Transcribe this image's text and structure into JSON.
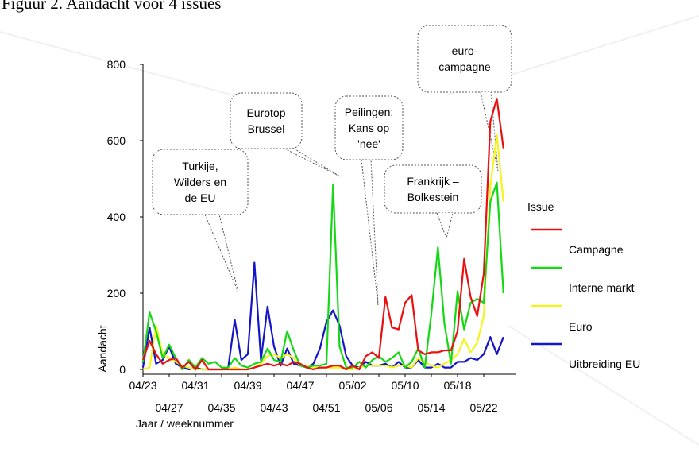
{
  "caption": "Figuur 2. Aandacht voor 4 issues",
  "chart_data": {
    "type": "line",
    "xlabel": "Jaar / weeknummer",
    "ylabel": "Aandacht",
    "ylim": [
      0,
      800
    ],
    "yticks": [
      0,
      200,
      400,
      600,
      800
    ],
    "tick_labels_upper": [
      "04/23",
      "04/31",
      "04/39",
      "04/47",
      "05/02",
      "05/10",
      "05/18"
    ],
    "tick_labels_lower": [
      "04/27",
      "04/35",
      "04/43",
      "04/51",
      "05/06",
      "05/14",
      "05/22"
    ],
    "legend_title": "Issue",
    "legend_position": "right",
    "series": [
      {
        "name": "Campagne",
        "color": "#e81010",
        "values": [
          25,
          75,
          40,
          15,
          25,
          30,
          5,
          20,
          0,
          25,
          0,
          0,
          0,
          0,
          0,
          0,
          0,
          5,
          10,
          15,
          10,
          15,
          10,
          20,
          15,
          5,
          0,
          5,
          5,
          10,
          10,
          0,
          10,
          0,
          35,
          45,
          30,
          190,
          110,
          105,
          175,
          195,
          50,
          40,
          45,
          45,
          50,
          50,
          100,
          290,
          190,
          140,
          250,
          650,
          710,
          580
        ]
      },
      {
        "name": "Interne markt",
        "color": "#14d814",
        "values": [
          20,
          150,
          100,
          30,
          65,
          30,
          0,
          25,
          5,
          30,
          15,
          20,
          5,
          5,
          30,
          10,
          5,
          15,
          20,
          55,
          25,
          20,
          100,
          50,
          10,
          5,
          10,
          10,
          15,
          485,
          60,
          5,
          5,
          20,
          5,
          25,
          35,
          20,
          30,
          45,
          5,
          20,
          55,
          5,
          145,
          320,
          120,
          15,
          205,
          105,
          175,
          185,
          175,
          440,
          490,
          200
        ]
      },
      {
        "name": "Euro",
        "color": "#f4f41e",
        "values": [
          0,
          5,
          115,
          40,
          30,
          20,
          10,
          5,
          0,
          0,
          0,
          0,
          0,
          0,
          5,
          0,
          0,
          5,
          15,
          35,
          40,
          30,
          40,
          30,
          10,
          10,
          5,
          5,
          5,
          5,
          5,
          0,
          0,
          5,
          10,
          10,
          10,
          10,
          5,
          10,
          10,
          5,
          30,
          20,
          10,
          5,
          15,
          25,
          40,
          80,
          45,
          70,
          140,
          480,
          615,
          440
        ]
      },
      {
        "name": "Uitbreiding EU",
        "color": "#1414c8",
        "values": [
          5,
          110,
          15,
          25,
          60,
          15,
          5,
          0,
          5,
          0,
          0,
          0,
          0,
          5,
          130,
          25,
          40,
          280,
          25,
          165,
          60,
          10,
          55,
          15,
          10,
          5,
          15,
          55,
          125,
          155,
          115,
          35,
          10,
          5,
          20,
          10,
          10,
          15,
          5,
          20,
          5,
          5,
          25,
          5,
          5,
          15,
          5,
          5,
          20,
          20,
          30,
          25,
          40,
          85,
          40,
          85
        ]
      }
    ],
    "annotations": [
      {
        "text": [
          "Turkije,",
          "Wilders en",
          "de EU"
        ]
      },
      {
        "text": [
          "Eurotop",
          "Brussel"
        ]
      },
      {
        "text": [
          "Peilingen:",
          "Kans op",
          "'nee'"
        ]
      },
      {
        "text": [
          "Frankrijk –",
          "Bolkestein"
        ]
      },
      {
        "text": [
          "euro-",
          "campagne"
        ]
      }
    ]
  }
}
